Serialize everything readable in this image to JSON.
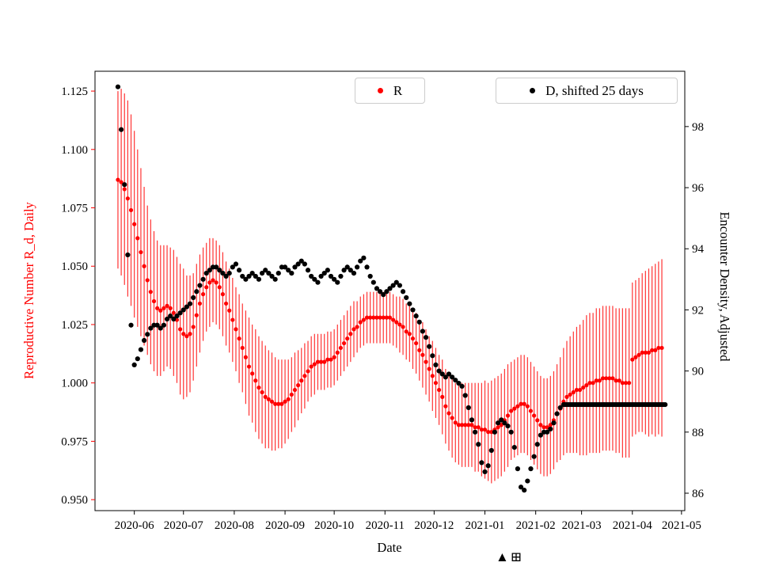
{
  "figure": {
    "background": "#ffffff"
  },
  "legend": {
    "items": [
      {
        "label": "R",
        "color": "#ff0000"
      },
      {
        "label": "D, shifted 25 days",
        "color": "#000000"
      }
    ]
  },
  "artifact_glyphs": "▲⊞",
  "chart_data": {
    "type": "scatter",
    "title": "",
    "xlabel": "Date",
    "ylabel_left": "Reproductive Number R_d, Daily",
    "ylabel_right": "Encounter Density, Adjusted",
    "axes": {
      "x_range": [
        "2020-05-08",
        "2021-05-03"
      ],
      "x_ticks": [
        {
          "label": "2020-06",
          "date": "2020-06-01"
        },
        {
          "label": "2020-07",
          "date": "2020-07-01"
        },
        {
          "label": "2020-08",
          "date": "2020-08-01"
        },
        {
          "label": "2020-09",
          "date": "2020-09-01"
        },
        {
          "label": "2020-10",
          "date": "2020-10-01"
        },
        {
          "label": "2020-11",
          "date": "2020-11-01"
        },
        {
          "label": "2020-12",
          "date": "2020-12-01"
        },
        {
          "label": "2021-01",
          "date": "2021-01-01"
        },
        {
          "label": "2021-02",
          "date": "2021-02-01"
        },
        {
          "label": "2021-03",
          "date": "2021-03-01"
        },
        {
          "label": "2021-04",
          "date": "2021-04-01"
        },
        {
          "label": "2021-05",
          "date": "2021-05-01"
        }
      ],
      "y_left": {
        "color": "#ff0000",
        "range": [
          0.9453,
          1.1335
        ],
        "ticks": [
          {
            "label": "1.125",
            "value": 1.125
          },
          {
            "label": "1.100",
            "value": 1.1
          },
          {
            "label": "1.075",
            "value": 1.075
          },
          {
            "label": "1.050",
            "value": 1.05
          },
          {
            "label": "1.025",
            "value": 1.025
          },
          {
            "label": "1.000",
            "value": 1.0
          },
          {
            "label": "0.975",
            "value": 0.975
          },
          {
            "label": "0.950",
            "value": 0.95
          }
        ]
      },
      "y_right": {
        "color": "#000000",
        "range": [
          85.43,
          99.81
        ],
        "ticks": [
          {
            "label": "98",
            "value": 98
          },
          {
            "label": "96",
            "value": 96
          },
          {
            "label": "94",
            "value": 94
          },
          {
            "label": "92",
            "value": 92
          },
          {
            "label": "90",
            "value": 90
          },
          {
            "label": "88",
            "value": 88
          },
          {
            "label": "86",
            "value": 86
          }
        ]
      }
    },
    "series": [
      {
        "name": "R",
        "axis": "left",
        "marker": "dot",
        "color": "#ff0000",
        "x_start": "2020-05-22",
        "x_step_days": 2,
        "y": [
          1.087,
          1.086,
          1.083,
          1.079,
          1.074,
          1.068,
          1.062,
          1.056,
          1.05,
          1.044,
          1.039,
          1.035,
          1.032,
          1.031,
          1.032,
          1.033,
          1.032,
          1.03,
          1.027,
          1.023,
          1.021,
          1.02,
          1.021,
          1.024,
          1.029,
          1.034,
          1.038,
          1.041,
          1.043,
          1.044,
          1.043,
          1.041,
          1.038,
          1.034,
          1.031,
          1.027,
          1.023,
          1.019,
          1.015,
          1.011,
          1.007,
          1.004,
          1.001,
          0.998,
          0.996,
          0.994,
          0.993,
          0.992,
          0.991,
          0.991,
          0.991,
          0.992,
          0.993,
          0.995,
          0.997,
          0.999,
          1.001,
          1.003,
          1.005,
          1.007,
          1.008,
          1.009,
          1.009,
          1.009,
          1.01,
          1.01,
          1.011,
          1.013,
          1.015,
          1.017,
          1.019,
          1.021,
          1.023,
          1.024,
          1.026,
          1.027,
          1.028,
          1.028,
          1.028,
          1.028,
          1.028,
          1.028,
          1.028,
          1.028,
          1.027,
          1.026,
          1.025,
          1.024,
          1.022,
          1.021,
          1.019,
          1.017,
          1.014,
          1.012,
          1.009,
          1.006,
          1.003,
          1.0,
          0.997,
          0.994,
          0.99,
          0.987,
          0.985,
          0.983,
          0.982,
          0.982,
          0.982,
          0.982,
          0.982,
          0.981,
          0.981,
          0.98,
          0.98,
          0.979,
          0.979,
          0.98,
          0.981,
          0.982,
          0.984,
          0.986,
          0.988,
          0.989,
          0.99,
          0.991,
          0.991,
          0.99,
          0.988,
          0.986,
          0.984,
          0.982,
          0.981,
          0.981,
          0.982,
          0.984,
          0.987,
          0.989,
          0.992,
          0.994,
          0.995,
          0.996,
          0.997,
          0.997,
          0.998,
          0.999,
          1.0,
          1.0,
          1.001,
          1.001,
          1.002,
          1.002,
          1.002,
          1.002,
          1.001,
          1.001,
          1.0,
          1.0,
          1.0,
          1.01,
          1.011,
          1.012,
          1.013,
          1.013,
          1.013,
          1.014,
          1.014,
          1.015,
          1.015
        ],
        "yerr": [
          0.038,
          0.04,
          0.041,
          0.042,
          0.041,
          0.04,
          0.038,
          0.036,
          0.034,
          0.032,
          0.031,
          0.03,
          0.029,
          0.028,
          0.027,
          0.026,
          0.026,
          0.027,
          0.027,
          0.028,
          0.028,
          0.026,
          0.025,
          0.023,
          0.022,
          0.021,
          0.02,
          0.019,
          0.019,
          0.018,
          0.018,
          0.018,
          0.018,
          0.018,
          0.018,
          0.018,
          0.018,
          0.019,
          0.019,
          0.02,
          0.021,
          0.021,
          0.022,
          0.022,
          0.022,
          0.022,
          0.021,
          0.021,
          0.02,
          0.019,
          0.019,
          0.018,
          0.017,
          0.016,
          0.016,
          0.015,
          0.014,
          0.014,
          0.013,
          0.013,
          0.013,
          0.012,
          0.012,
          0.012,
          0.012,
          0.012,
          0.012,
          0.012,
          0.012,
          0.012,
          0.012,
          0.012,
          0.012,
          0.011,
          0.011,
          0.011,
          0.011,
          0.011,
          0.011,
          0.011,
          0.011,
          0.011,
          0.011,
          0.011,
          0.011,
          0.011,
          0.012,
          0.012,
          0.012,
          0.012,
          0.013,
          0.013,
          0.013,
          0.014,
          0.014,
          0.014,
          0.015,
          0.015,
          0.015,
          0.016,
          0.016,
          0.016,
          0.017,
          0.017,
          0.017,
          0.018,
          0.018,
          0.018,
          0.018,
          0.019,
          0.019,
          0.02,
          0.021,
          0.021,
          0.022,
          0.022,
          0.022,
          0.022,
          0.022,
          0.022,
          0.021,
          0.021,
          0.021,
          0.021,
          0.021,
          0.021,
          0.021,
          0.021,
          0.021,
          0.021,
          0.021,
          0.021,
          0.021,
          0.021,
          0.021,
          0.022,
          0.023,
          0.024,
          0.025,
          0.026,
          0.027,
          0.028,
          0.029,
          0.03,
          0.03,
          0.03,
          0.031,
          0.031,
          0.031,
          0.031,
          0.031,
          0.031,
          0.031,
          0.031,
          0.032,
          0.032,
          0.032,
          0.033,
          0.033,
          0.033,
          0.034,
          0.035,
          0.036,
          0.036,
          0.037,
          0.037,
          0.038
        ]
      },
      {
        "name": "D, shifted 25 days",
        "axis": "right",
        "marker": "dot",
        "color": "#000000",
        "x_start": "2020-05-22",
        "x_step_days": 2,
        "y": [
          99.3,
          97.9,
          96.1,
          93.8,
          91.5,
          90.2,
          90.4,
          90.7,
          91.0,
          91.2,
          91.4,
          91.5,
          91.5,
          91.4,
          91.5,
          91.7,
          91.8,
          91.7,
          91.8,
          91.9,
          92.0,
          92.1,
          92.2,
          92.4,
          92.6,
          92.8,
          93.0,
          93.2,
          93.3,
          93.4,
          93.4,
          93.3,
          93.2,
          93.1,
          93.2,
          93.4,
          93.5,
          93.3,
          93.1,
          93.0,
          93.1,
          93.2,
          93.1,
          93.0,
          93.2,
          93.3,
          93.2,
          93.1,
          93.0,
          93.2,
          93.4,
          93.4,
          93.3,
          93.2,
          93.4,
          93.5,
          93.6,
          93.5,
          93.3,
          93.1,
          93.0,
          92.9,
          93.1,
          93.2,
          93.3,
          93.1,
          93.0,
          92.9,
          93.1,
          93.3,
          93.4,
          93.3,
          93.2,
          93.4,
          93.6,
          93.7,
          93.4,
          93.1,
          92.9,
          92.7,
          92.6,
          92.5,
          92.6,
          92.7,
          92.8,
          92.9,
          92.8,
          92.6,
          92.4,
          92.2,
          92.0,
          91.8,
          91.6,
          91.3,
          91.1,
          90.8,
          90.5,
          90.2,
          90.0,
          89.9,
          89.8,
          89.9,
          89.8,
          89.7,
          89.6,
          89.5,
          89.2,
          88.8,
          88.4,
          88.0,
          87.6,
          87.0,
          86.7,
          86.9,
          87.4,
          88.0,
          88.3,
          88.4,
          88.3,
          88.2,
          88.0,
          87.5,
          86.8,
          86.2,
          86.1,
          86.4,
          86.8,
          87.2,
          87.6,
          87.9,
          88.0,
          88.0,
          88.1,
          88.3,
          88.6,
          88.8
        ],
        "flat_tail": {
          "start": "2021-02-18",
          "end": "2021-04-21",
          "value": 88.9,
          "step_days": 1
        }
      }
    ]
  }
}
